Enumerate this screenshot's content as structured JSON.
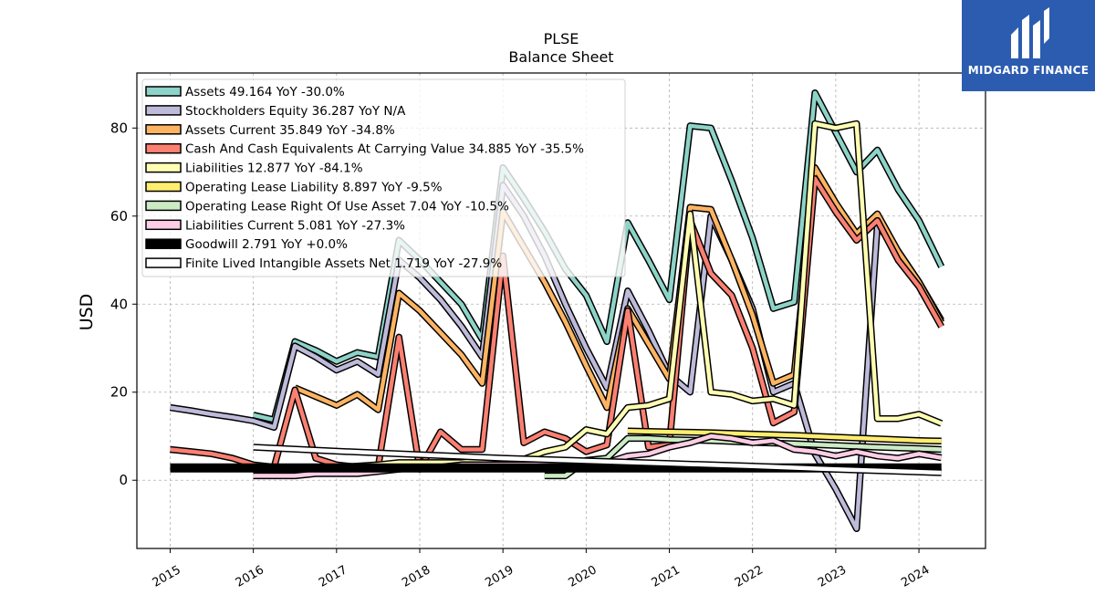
{
  "brand": {
    "name": "MIDGARD FINANCE",
    "icon": "midgard-logo-icon",
    "color": "#2b5cb0"
  },
  "chart_data": {
    "type": "line",
    "title": "PLSE",
    "subtitle": "Balance  Sheet",
    "xlabel": "",
    "ylabel": "USD",
    "xlim": [
      2014.6,
      2024.8
    ],
    "ylim": [
      -15.5,
      92.5
    ],
    "yticks": [
      0,
      20,
      40,
      60,
      80
    ],
    "xticks": [
      "2015",
      "2016",
      "2017",
      "2018",
      "2019",
      "2020",
      "2021",
      "2022",
      "2023",
      "2024"
    ],
    "grid": true,
    "legend_position": "top-left",
    "series": [
      {
        "name": "Assets",
        "legend": "Assets  49.164 YoY -30.0%",
        "color": "#8dd3c7",
        "points": [
          [
            2016.0,
            14.8
          ],
          [
            2016.25,
            13.7
          ],
          [
            2016.5,
            31.5
          ],
          [
            2016.75,
            29.5
          ],
          [
            2017.0,
            27.0
          ],
          [
            2017.25,
            29.0
          ],
          [
            2017.5,
            28.0
          ],
          [
            2017.75,
            54.5
          ],
          [
            2018.0,
            50.0
          ],
          [
            2018.25,
            45.0
          ],
          [
            2018.5,
            40.0
          ],
          [
            2018.75,
            32.0
          ],
          [
            2019.0,
            71.0
          ],
          [
            2019.25,
            64.0
          ],
          [
            2019.5,
            56.5
          ],
          [
            2019.75,
            48.0
          ],
          [
            2020.0,
            42.0
          ],
          [
            2020.25,
            31.5
          ],
          [
            2020.5,
            58.5
          ],
          [
            2020.75,
            50.0
          ],
          [
            2021.0,
            41.0
          ],
          [
            2021.25,
            80.5
          ],
          [
            2021.5,
            80.0
          ],
          [
            2021.75,
            68.0
          ],
          [
            2022.0,
            55.0
          ],
          [
            2022.25,
            39.0
          ],
          [
            2022.5,
            40.5
          ],
          [
            2022.75,
            88.0
          ],
          [
            2023.0,
            79.0
          ],
          [
            2023.25,
            70.0
          ],
          [
            2023.5,
            75.0
          ],
          [
            2023.75,
            66.0
          ],
          [
            2024.0,
            59.0
          ],
          [
            2024.27,
            48.5
          ]
        ]
      },
      {
        "name": "Stockholders Equity",
        "legend": "Stockholders Equity  36.287 YoY N/A",
        "color": "#bebada",
        "points": [
          [
            2015.0,
            16.5
          ],
          [
            2015.25,
            15.8
          ],
          [
            2015.5,
            15.0
          ],
          [
            2015.75,
            14.3
          ],
          [
            2016.0,
            13.5
          ],
          [
            2016.25,
            12.0
          ],
          [
            2016.5,
            30.5
          ],
          [
            2016.75,
            28.0
          ],
          [
            2017.0,
            25.0
          ],
          [
            2017.25,
            27.0
          ],
          [
            2017.5,
            24.0
          ],
          [
            2017.75,
            50.0
          ],
          [
            2018.0,
            46.0
          ],
          [
            2018.25,
            41.0
          ],
          [
            2018.5,
            35.0
          ],
          [
            2018.75,
            28.0
          ],
          [
            2019.0,
            67.0
          ],
          [
            2019.25,
            60.0
          ],
          [
            2019.5,
            51.0
          ],
          [
            2019.75,
            40.0
          ],
          [
            2020.0,
            30.0
          ],
          [
            2020.25,
            21.0
          ],
          [
            2020.5,
            43.0
          ],
          [
            2020.75,
            34.0
          ],
          [
            2021.0,
            24.0
          ],
          [
            2021.25,
            20.0
          ],
          [
            2021.5,
            60.0
          ],
          [
            2021.75,
            50.0
          ],
          [
            2022.0,
            39.0
          ],
          [
            2022.25,
            20.0
          ],
          [
            2022.5,
            22.0
          ],
          [
            2022.75,
            6.0
          ],
          [
            2023.0,
            -2.0
          ],
          [
            2023.25,
            -11.0
          ],
          [
            2023.5,
            58.0
          ],
          [
            2023.75,
            52.0
          ],
          [
            2024.0,
            45.0
          ],
          [
            2024.27,
            36.3
          ]
        ]
      },
      {
        "name": "Assets Current",
        "legend": "Assets Current  35.849 YoY -34.8%",
        "color": "#fdb462",
        "points": [
          [
            2016.5,
            21.0
          ],
          [
            2016.75,
            19.0
          ],
          [
            2017.0,
            17.0
          ],
          [
            2017.25,
            19.5
          ],
          [
            2017.5,
            16.0
          ],
          [
            2017.75,
            42.5
          ],
          [
            2018.0,
            38.5
          ],
          [
            2018.25,
            33.5
          ],
          [
            2018.5,
            28.5
          ],
          [
            2018.75,
            22.0
          ],
          [
            2019.0,
            61.0
          ],
          [
            2019.25,
            53.0
          ],
          [
            2019.5,
            45.0
          ],
          [
            2019.75,
            36.0
          ],
          [
            2020.0,
            26.0
          ],
          [
            2020.25,
            16.5
          ],
          [
            2020.5,
            39.0
          ],
          [
            2020.75,
            31.0
          ],
          [
            2021.0,
            23.0
          ],
          [
            2021.25,
            62.0
          ],
          [
            2021.5,
            61.5
          ],
          [
            2021.75,
            50.0
          ],
          [
            2022.0,
            37.5
          ],
          [
            2022.25,
            22.0
          ],
          [
            2022.5,
            24.0
          ],
          [
            2022.75,
            71.0
          ],
          [
            2023.0,
            63.0
          ],
          [
            2023.25,
            56.0
          ],
          [
            2023.5,
            60.5
          ],
          [
            2023.75,
            52.0
          ],
          [
            2024.0,
            45.0
          ],
          [
            2024.27,
            35.8
          ]
        ]
      },
      {
        "name": "Cash And Cash Equivalents At Carrying Value",
        "legend": "Cash And Cash Equivalents At Carrying Value  34.885 YoY -35.5%",
        "color": "#fb8072",
        "points": [
          [
            2015.0,
            7.0
          ],
          [
            2015.25,
            6.5
          ],
          [
            2015.5,
            6.0
          ],
          [
            2015.75,
            5.0
          ],
          [
            2016.0,
            3.5
          ],
          [
            2016.25,
            3.0
          ],
          [
            2016.5,
            20.5
          ],
          [
            2016.75,
            5.0
          ],
          [
            2017.0,
            3.5
          ],
          [
            2017.25,
            3.0
          ],
          [
            2017.5,
            3.0
          ],
          [
            2017.75,
            32.5
          ],
          [
            2018.0,
            2.5
          ],
          [
            2018.25,
            11.0
          ],
          [
            2018.5,
            7.0
          ],
          [
            2018.75,
            7.0
          ],
          [
            2019.0,
            51.0
          ],
          [
            2019.25,
            8.5
          ],
          [
            2019.5,
            11.0
          ],
          [
            2019.75,
            9.5
          ],
          [
            2020.0,
            6.5
          ],
          [
            2020.25,
            8.0
          ],
          [
            2020.5,
            38.5
          ],
          [
            2020.75,
            7.5
          ],
          [
            2021.0,
            8.0
          ],
          [
            2021.25,
            59.0
          ],
          [
            2021.5,
            47.0
          ],
          [
            2021.75,
            42.0
          ],
          [
            2022.0,
            30.0
          ],
          [
            2022.25,
            13.0
          ],
          [
            2022.5,
            15.5
          ],
          [
            2022.75,
            68.5
          ],
          [
            2023.0,
            61.0
          ],
          [
            2023.25,
            54.5
          ],
          [
            2023.5,
            59.0
          ],
          [
            2023.75,
            50.0
          ],
          [
            2024.0,
            44.0
          ],
          [
            2024.27,
            34.9
          ]
        ]
      },
      {
        "name": "Liabilities",
        "legend": "Liabilities  12.877 YoY -84.1%",
        "color": "#ffffb3",
        "points": [
          [
            2016.0,
            2.5
          ],
          [
            2016.25,
            2.5
          ],
          [
            2016.5,
            2.5
          ],
          [
            2016.75,
            2.8
          ],
          [
            2017.0,
            3.0
          ],
          [
            2017.25,
            3.2
          ],
          [
            2017.5,
            3.5
          ],
          [
            2017.75,
            4.0
          ],
          [
            2018.0,
            4.0
          ],
          [
            2018.25,
            4.0
          ],
          [
            2018.5,
            4.0
          ],
          [
            2018.75,
            4.5
          ],
          [
            2019.0,
            4.5
          ],
          [
            2019.25,
            4.8
          ],
          [
            2019.5,
            6.5
          ],
          [
            2019.75,
            7.5
          ],
          [
            2020.0,
            11.5
          ],
          [
            2020.25,
            10.5
          ],
          [
            2020.5,
            16.5
          ],
          [
            2020.75,
            17.0
          ],
          [
            2021.0,
            18.5
          ],
          [
            2021.25,
            60.5
          ],
          [
            2021.5,
            20.0
          ],
          [
            2021.75,
            19.5
          ],
          [
            2022.0,
            18.0
          ],
          [
            2022.25,
            18.5
          ],
          [
            2022.5,
            17.0
          ],
          [
            2022.75,
            81.0
          ],
          [
            2023.0,
            80.0
          ],
          [
            2023.25,
            81.0
          ],
          [
            2023.5,
            14.0
          ],
          [
            2023.75,
            14.0
          ],
          [
            2024.0,
            15.0
          ],
          [
            2024.27,
            12.9
          ]
        ]
      },
      {
        "name": "Operating Lease Liability",
        "legend": "Operating Lease Liability  8.897 YoY -9.5%",
        "color": "#ffed6f",
        "points": [
          [
            2020.5,
            11.2
          ],
          [
            2021.0,
            11.0
          ],
          [
            2021.5,
            10.8
          ],
          [
            2022.0,
            10.5
          ],
          [
            2022.5,
            10.2
          ],
          [
            2023.0,
            9.8
          ],
          [
            2023.5,
            9.4
          ],
          [
            2024.0,
            9.0
          ],
          [
            2024.27,
            8.9
          ]
        ]
      },
      {
        "name": "Operating Lease Right Of Use Asset",
        "legend": "Operating Lease Right Of Use Asset  7.04 YoY -10.5%",
        "color": "#ccebc5",
        "points": [
          [
            2019.5,
            1.0
          ],
          [
            2019.75,
            1.0
          ],
          [
            2020.0,
            4.5
          ],
          [
            2020.25,
            5.0
          ],
          [
            2020.5,
            9.5
          ],
          [
            2020.75,
            9.5
          ],
          [
            2021.0,
            9.2
          ],
          [
            2021.5,
            9.0
          ],
          [
            2022.0,
            8.6
          ],
          [
            2022.5,
            8.3
          ],
          [
            2023.0,
            7.9
          ],
          [
            2023.5,
            7.5
          ],
          [
            2024.0,
            7.2
          ],
          [
            2024.27,
            7.0
          ]
        ]
      },
      {
        "name": "Liabilities Current",
        "legend": "Liabilities Current  5.081 YoY -27.3%",
        "color": "#fccde5",
        "points": [
          [
            2016.0,
            1.0
          ],
          [
            2016.25,
            1.0
          ],
          [
            2016.5,
            1.0
          ],
          [
            2016.75,
            1.5
          ],
          [
            2017.0,
            1.5
          ],
          [
            2017.25,
            1.5
          ],
          [
            2017.5,
            2.0
          ],
          [
            2017.75,
            2.5
          ],
          [
            2018.0,
            3.0
          ],
          [
            2018.25,
            3.0
          ],
          [
            2018.5,
            3.5
          ],
          [
            2018.75,
            3.5
          ],
          [
            2019.0,
            3.5
          ],
          [
            2019.25,
            3.5
          ],
          [
            2019.5,
            3.5
          ],
          [
            2019.75,
            4.0
          ],
          [
            2020.0,
            4.0
          ],
          [
            2020.25,
            4.0
          ],
          [
            2020.5,
            5.5
          ],
          [
            2020.75,
            6.0
          ],
          [
            2021.0,
            7.5
          ],
          [
            2021.25,
            8.5
          ],
          [
            2021.5,
            10.0
          ],
          [
            2021.75,
            9.5
          ],
          [
            2022.0,
            8.5
          ],
          [
            2022.25,
            9.0
          ],
          [
            2022.5,
            7.0
          ],
          [
            2022.75,
            6.5
          ],
          [
            2023.0,
            5.5
          ],
          [
            2023.25,
            6.5
          ],
          [
            2023.5,
            5.5
          ],
          [
            2023.75,
            5.0
          ],
          [
            2024.0,
            6.0
          ],
          [
            2024.27,
            5.1
          ]
        ]
      },
      {
        "name": "Goodwill",
        "legend": "Goodwill  2.791 YoY +0.0%",
        "color": "#000000",
        "points": [
          [
            2015.0,
            2.8
          ],
          [
            2024.27,
            2.8
          ]
        ]
      },
      {
        "name": "Finite Lived Intangible Assets Net",
        "legend": "Finite Lived Intangible Assets Net  1.719 YoY -27.9%",
        "color": "#ffffff",
        "points": [
          [
            2016.0,
            7.5
          ],
          [
            2017.0,
            6.6
          ],
          [
            2018.0,
            5.8
          ],
          [
            2019.0,
            5.0
          ],
          [
            2020.0,
            4.4
          ],
          [
            2021.0,
            3.8
          ],
          [
            2022.0,
            3.2
          ],
          [
            2023.0,
            2.5
          ],
          [
            2024.27,
            1.7
          ]
        ]
      }
    ]
  }
}
